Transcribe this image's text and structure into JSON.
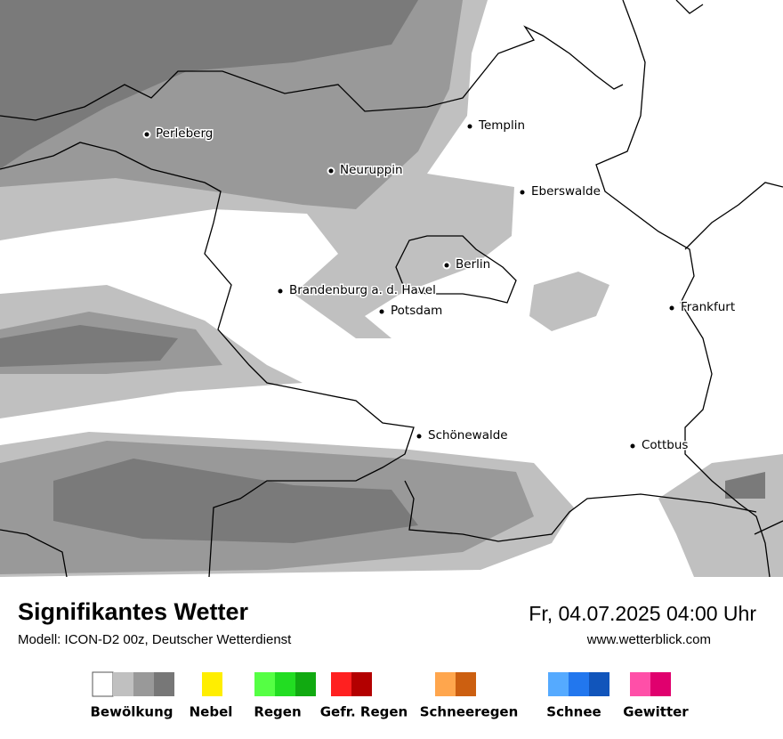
{
  "header": {
    "title": "Signifikantes Wetter",
    "model": "Modell: ICON-D2 00z, Deutscher Wetterdienst",
    "datetime": "Fr, 04.07.2025 04:00 Uhr",
    "website": "www.wetterblick.com"
  },
  "map": {
    "cities": [
      "Perleberg",
      "Neuruppin",
      "Templin",
      "Eberswalde",
      "Berlin",
      "Brandenburg a. d. Havel",
      "Potsdam",
      "Frankfurt",
      "Schönewalde",
      "Cottbus"
    ]
  },
  "legend": [
    {
      "label": "Bewölkung",
      "colors": [
        "#ffffff",
        "#c0c0c0",
        "#999999",
        "#777777"
      ]
    },
    {
      "label": "Nebel",
      "colors": [
        "#ffee00"
      ]
    },
    {
      "label": "Regen",
      "colors": [
        "#55ff44",
        "#22dd22",
        "#11aa11"
      ]
    },
    {
      "label": "Gefr. Regen",
      "colors": [
        "#ff2020",
        "#b30000"
      ]
    },
    {
      "label": "Schneeregen",
      "colors": [
        "#ffa64d",
        "#cc5f10"
      ]
    },
    {
      "label": "Schnee",
      "colors": [
        "#55aaff",
        "#2277ee",
        "#1155bb"
      ]
    },
    {
      "label": "Gewitter",
      "colors": [
        "#ff4fa8",
        "#e0006e"
      ]
    }
  ]
}
